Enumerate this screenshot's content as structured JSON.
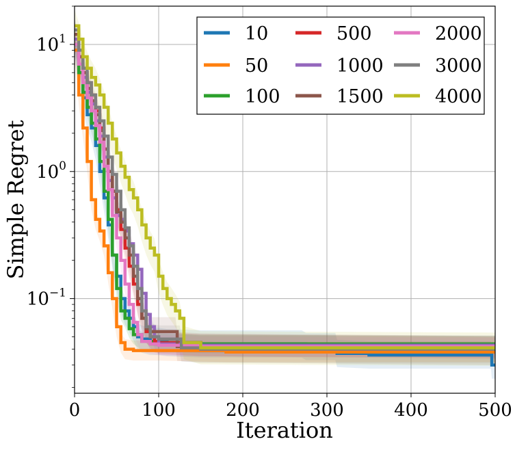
{
  "chart_data": {
    "type": "line",
    "xlabel": "Iteration",
    "ylabel": "Simple Regret",
    "xlim": [
      0,
      500
    ],
    "ylim": [
      0.018,
      20
    ],
    "yscale": "log",
    "grid": true,
    "legend_placement": "top-right",
    "legend_columns": 3,
    "x_ticks": [
      0,
      100,
      200,
      300,
      400,
      500
    ],
    "x_tick_labels": [
      "0",
      "100",
      "200",
      "300",
      "400",
      "500"
    ],
    "y_ticks": [
      {
        "value": 10,
        "base": "10",
        "exp": "1"
      },
      {
        "value": 1,
        "base": "10",
        "exp": "0"
      },
      {
        "value": 0.1,
        "base": "10",
        "exp": "−1"
      }
    ],
    "series": [
      {
        "name": "10",
        "color": "#1f77b4",
        "band": 1.28,
        "points": [
          [
            0,
            10
          ],
          [
            5,
            6
          ],
          [
            10,
            3.8
          ],
          [
            15,
            2.8
          ],
          [
            20,
            2.2
          ],
          [
            25,
            1.6
          ],
          [
            30,
            1.0
          ],
          [
            35,
            0.62
          ],
          [
            40,
            0.38
          ],
          [
            45,
            0.22
          ],
          [
            50,
            0.15
          ],
          [
            55,
            0.1
          ],
          [
            60,
            0.08
          ],
          [
            65,
            0.07
          ],
          [
            70,
            0.06
          ],
          [
            75,
            0.05
          ],
          [
            80,
            0.048
          ],
          [
            90,
            0.046
          ],
          [
            100,
            0.046
          ],
          [
            110,
            0.045
          ],
          [
            150,
            0.044
          ],
          [
            270,
            0.044
          ],
          [
            275,
            0.042
          ],
          [
            310,
            0.042
          ],
          [
            312,
            0.037
          ],
          [
            350,
            0.036
          ],
          [
            495,
            0.036
          ],
          [
            496,
            0.03
          ],
          [
            500,
            0.03
          ]
        ]
      },
      {
        "name": "50",
        "color": "#ff7f0e",
        "band": 1.2,
        "points": [
          [
            0,
            9
          ],
          [
            5,
            4
          ],
          [
            10,
            2.2
          ],
          [
            15,
            1.2
          ],
          [
            20,
            0.6
          ],
          [
            25,
            0.42
          ],
          [
            30,
            0.34
          ],
          [
            35,
            0.26
          ],
          [
            40,
            0.16
          ],
          [
            45,
            0.1
          ],
          [
            50,
            0.06
          ],
          [
            55,
            0.045
          ],
          [
            60,
            0.04
          ],
          [
            70,
            0.039
          ],
          [
            80,
            0.039
          ],
          [
            100,
            0.039
          ],
          [
            180,
            0.038
          ],
          [
            500,
            0.038
          ]
        ]
      },
      {
        "name": "100",
        "color": "#2ca02c",
        "band": 1.18,
        "points": [
          [
            0,
            10
          ],
          [
            5,
            6
          ],
          [
            10,
            4.2
          ],
          [
            15,
            3.2
          ],
          [
            20,
            2.4
          ],
          [
            25,
            1.8
          ],
          [
            30,
            1.2
          ],
          [
            35,
            0.7
          ],
          [
            40,
            0.42
          ],
          [
            45,
            0.22
          ],
          [
            50,
            0.12
          ],
          [
            55,
            0.08
          ],
          [
            60,
            0.07
          ],
          [
            65,
            0.058
          ],
          [
            70,
            0.052
          ],
          [
            80,
            0.046
          ],
          [
            100,
            0.045
          ],
          [
            150,
            0.044
          ],
          [
            500,
            0.043
          ]
        ]
      },
      {
        "name": "500",
        "color": "#d62728",
        "band": 1.22,
        "points": [
          [
            0,
            11
          ],
          [
            5,
            8
          ],
          [
            10,
            6
          ],
          [
            15,
            5
          ],
          [
            20,
            4
          ],
          [
            25,
            3
          ],
          [
            30,
            2.2
          ],
          [
            35,
            1.5
          ],
          [
            40,
            1.0
          ],
          [
            45,
            0.7
          ],
          [
            50,
            0.5
          ],
          [
            55,
            0.35
          ],
          [
            60,
            0.25
          ],
          [
            65,
            0.18
          ],
          [
            70,
            0.13
          ],
          [
            75,
            0.09
          ],
          [
            80,
            0.07
          ],
          [
            85,
            0.055
          ],
          [
            90,
            0.05
          ],
          [
            95,
            0.046
          ],
          [
            100,
            0.045
          ],
          [
            150,
            0.043
          ],
          [
            500,
            0.041
          ]
        ]
      },
      {
        "name": "1000",
        "color": "#9467bd",
        "band": 1.22,
        "points": [
          [
            0,
            11
          ],
          [
            5,
            7
          ],
          [
            10,
            5.5
          ],
          [
            15,
            4.2
          ],
          [
            20,
            3.4
          ],
          [
            25,
            2.5
          ],
          [
            30,
            1.9
          ],
          [
            35,
            1.3
          ],
          [
            40,
            0.85
          ],
          [
            45,
            0.62
          ],
          [
            50,
            0.45
          ],
          [
            55,
            0.42
          ],
          [
            60,
            0.34
          ],
          [
            65,
            0.27
          ],
          [
            70,
            0.22
          ],
          [
            75,
            0.17
          ],
          [
            80,
            0.11
          ],
          [
            85,
            0.075
          ],
          [
            90,
            0.06
          ],
          [
            95,
            0.05
          ],
          [
            100,
            0.044
          ],
          [
            150,
            0.043
          ],
          [
            500,
            0.042
          ]
        ]
      },
      {
        "name": "1500",
        "color": "#8c564b",
        "band": 1.3,
        "points": [
          [
            0,
            12
          ],
          [
            5,
            8
          ],
          [
            10,
            6
          ],
          [
            15,
            4.5
          ],
          [
            20,
            3.6
          ],
          [
            25,
            2.8
          ],
          [
            30,
            2.1
          ],
          [
            35,
            1.5
          ],
          [
            40,
            1.0
          ],
          [
            45,
            0.7
          ],
          [
            50,
            0.48
          ],
          [
            55,
            0.4
          ],
          [
            60,
            0.3
          ],
          [
            65,
            0.22
          ],
          [
            70,
            0.15
          ],
          [
            75,
            0.1
          ],
          [
            80,
            0.07
          ],
          [
            85,
            0.058
          ],
          [
            90,
            0.055
          ],
          [
            120,
            0.055
          ],
          [
            122,
            0.042
          ],
          [
            150,
            0.041
          ],
          [
            500,
            0.039
          ]
        ]
      },
      {
        "name": "2000",
        "color": "#e377c2",
        "band": 1.2,
        "points": [
          [
            0,
            10
          ],
          [
            5,
            7
          ],
          [
            10,
            5
          ],
          [
            15,
            3.8
          ],
          [
            20,
            3.0
          ],
          [
            25,
            2.3
          ],
          [
            30,
            1.7
          ],
          [
            35,
            1.1
          ],
          [
            40,
            0.72
          ],
          [
            45,
            0.45
          ],
          [
            50,
            0.3
          ],
          [
            55,
            0.2
          ],
          [
            60,
            0.13
          ],
          [
            65,
            0.09
          ],
          [
            70,
            0.065
          ],
          [
            75,
            0.052
          ],
          [
            80,
            0.046
          ],
          [
            90,
            0.044
          ],
          [
            100,
            0.043
          ],
          [
            150,
            0.042
          ],
          [
            500,
            0.041
          ]
        ]
      },
      {
        "name": "3000",
        "color": "#7f7f7f",
        "band": 1.28,
        "points": [
          [
            0,
            13
          ],
          [
            5,
            9
          ],
          [
            10,
            6.5
          ],
          [
            15,
            5
          ],
          [
            20,
            4
          ],
          [
            25,
            3.2
          ],
          [
            30,
            2.5
          ],
          [
            35,
            1.9
          ],
          [
            40,
            1.3
          ],
          [
            45,
            0.95
          ],
          [
            50,
            0.7
          ],
          [
            55,
            0.5
          ],
          [
            60,
            0.36
          ],
          [
            65,
            0.26
          ],
          [
            70,
            0.18
          ],
          [
            75,
            0.12
          ],
          [
            80,
            0.08
          ],
          [
            85,
            0.06
          ],
          [
            90,
            0.05
          ],
          [
            100,
            0.048
          ],
          [
            125,
            0.048
          ],
          [
            127,
            0.041
          ],
          [
            150,
            0.04
          ],
          [
            500,
            0.04
          ]
        ]
      },
      {
        "name": "4000",
        "color": "#bcbd22",
        "band": 1.35,
        "points": [
          [
            0,
            14
          ],
          [
            5,
            11
          ],
          [
            10,
            8
          ],
          [
            15,
            6.5
          ],
          [
            20,
            5.5
          ],
          [
            25,
            4.8
          ],
          [
            30,
            4.0
          ],
          [
            35,
            3.2
          ],
          [
            40,
            2.4
          ],
          [
            45,
            1.8
          ],
          [
            50,
            1.4
          ],
          [
            55,
            1.1
          ],
          [
            60,
            0.9
          ],
          [
            65,
            0.72
          ],
          [
            70,
            0.62
          ],
          [
            75,
            0.5
          ],
          [
            80,
            0.38
          ],
          [
            85,
            0.3
          ],
          [
            90,
            0.25
          ],
          [
            95,
            0.22
          ],
          [
            100,
            0.15
          ],
          [
            105,
            0.12
          ],
          [
            110,
            0.1
          ],
          [
            115,
            0.09
          ],
          [
            120,
            0.08
          ],
          [
            125,
            0.07
          ],
          [
            130,
            0.045
          ],
          [
            150,
            0.041
          ],
          [
            500,
            0.04
          ]
        ]
      }
    ]
  }
}
